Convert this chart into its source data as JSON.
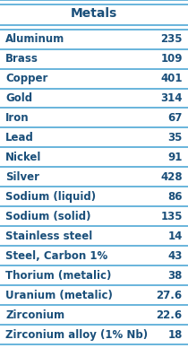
{
  "title": "Metals",
  "rows": [
    [
      "Aluminum",
      "235"
    ],
    [
      "Brass",
      "109"
    ],
    [
      "Copper",
      "401"
    ],
    [
      "Gold",
      "314"
    ],
    [
      "Iron",
      "67"
    ],
    [
      "Lead",
      "35"
    ],
    [
      "Nickel",
      "91"
    ],
    [
      "Silver",
      "428"
    ],
    [
      "Sodium (liquid)",
      "86"
    ],
    [
      "Sodium (solid)",
      "135"
    ],
    [
      "Stainless steel",
      "14"
    ],
    [
      "Steel, Carbon 1%",
      "43"
    ],
    [
      "Thorium (metalic)",
      "38"
    ],
    [
      "Uranium (metalic)",
      "27.6"
    ],
    [
      "Zirconium",
      "22.6"
    ],
    [
      "Zirconium alloy (1% Nb)",
      "18"
    ]
  ],
  "bg_color": "#ffffff",
  "line_color": "#4fa8d5",
  "text_color": "#1a4f7a",
  "font_size": 8.5,
  "title_font_size": 10
}
